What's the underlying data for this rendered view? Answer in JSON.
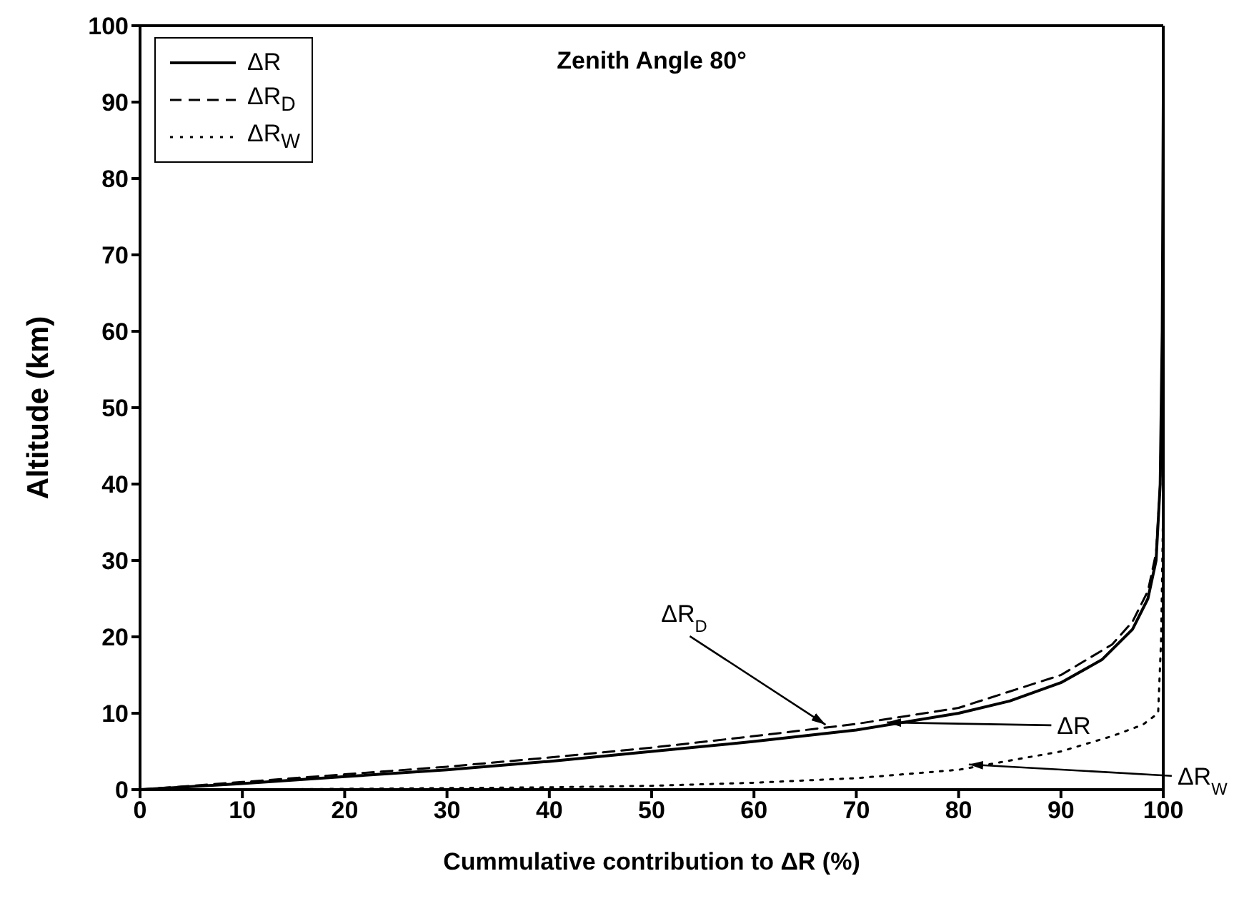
{
  "chart_data": {
    "type": "line",
    "title": "Zenith Angle 80°",
    "xlabel": "Cummulative contribution to ΔR (%)",
    "ylabel": "Altitude (km)",
    "xlim": [
      0,
      100
    ],
    "xticks": [
      0,
      10,
      20,
      30,
      40,
      50,
      60,
      70,
      80,
      90,
      100
    ],
    "ylim": [
      0,
      100
    ],
    "yticks": [
      0,
      10,
      20,
      30,
      40,
      50,
      60,
      70,
      80,
      90,
      100
    ],
    "grid": false,
    "legend": "top left",
    "marker": "none",
    "series": [
      {
        "name": "ΔR",
        "color": "#000000",
        "line_style": "solid",
        "x": [
          0,
          5,
          10,
          20,
          30,
          40,
          50,
          60,
          70,
          80,
          85,
          90,
          94,
          97,
          98.5,
          99.3,
          99.7,
          99.9,
          100
        ],
        "values": [
          0,
          0.4,
          0.8,
          1.7,
          2.6,
          3.7,
          5,
          6.3,
          7.8,
          10,
          11.6,
          14,
          17,
          21,
          25,
          30,
          40,
          60,
          90
        ]
      },
      {
        "name": "ΔR$_{D}$",
        "color": "#000000",
        "line_style": "dashed",
        "x": [
          0,
          5,
          10,
          20,
          30,
          40,
          50,
          60,
          70,
          80,
          90,
          95,
          97,
          98.5,
          99.3,
          99.7,
          99.9
        ],
        "values": [
          0,
          0.5,
          1,
          2,
          3,
          4.2,
          5.5,
          7,
          8.6,
          10.7,
          15,
          19,
          22,
          26,
          31,
          40,
          55
        ]
      },
      {
        "name": "ΔR$_{W}$",
        "color": "#000000",
        "line_style": "dotted",
        "x": [
          0,
          10,
          20,
          30,
          40,
          50,
          60,
          70,
          80,
          90,
          95,
          98,
          99.5,
          99.8,
          100
        ],
        "values": [
          0,
          0,
          0.1,
          0.2,
          0.3,
          0.5,
          0.9,
          1.5,
          2.6,
          5,
          7,
          8.5,
          10,
          20,
          38
        ]
      }
    ],
    "annotations": [
      {
        "text": "ΔR$_{D}$",
        "x": 67,
        "y": 8.5
      },
      {
        "text": "ΔR",
        "x": 73,
        "y": 8.8
      },
      {
        "text": "ΔR$_{W}$",
        "x": 81,
        "y": 3.3
      }
    ]
  }
}
